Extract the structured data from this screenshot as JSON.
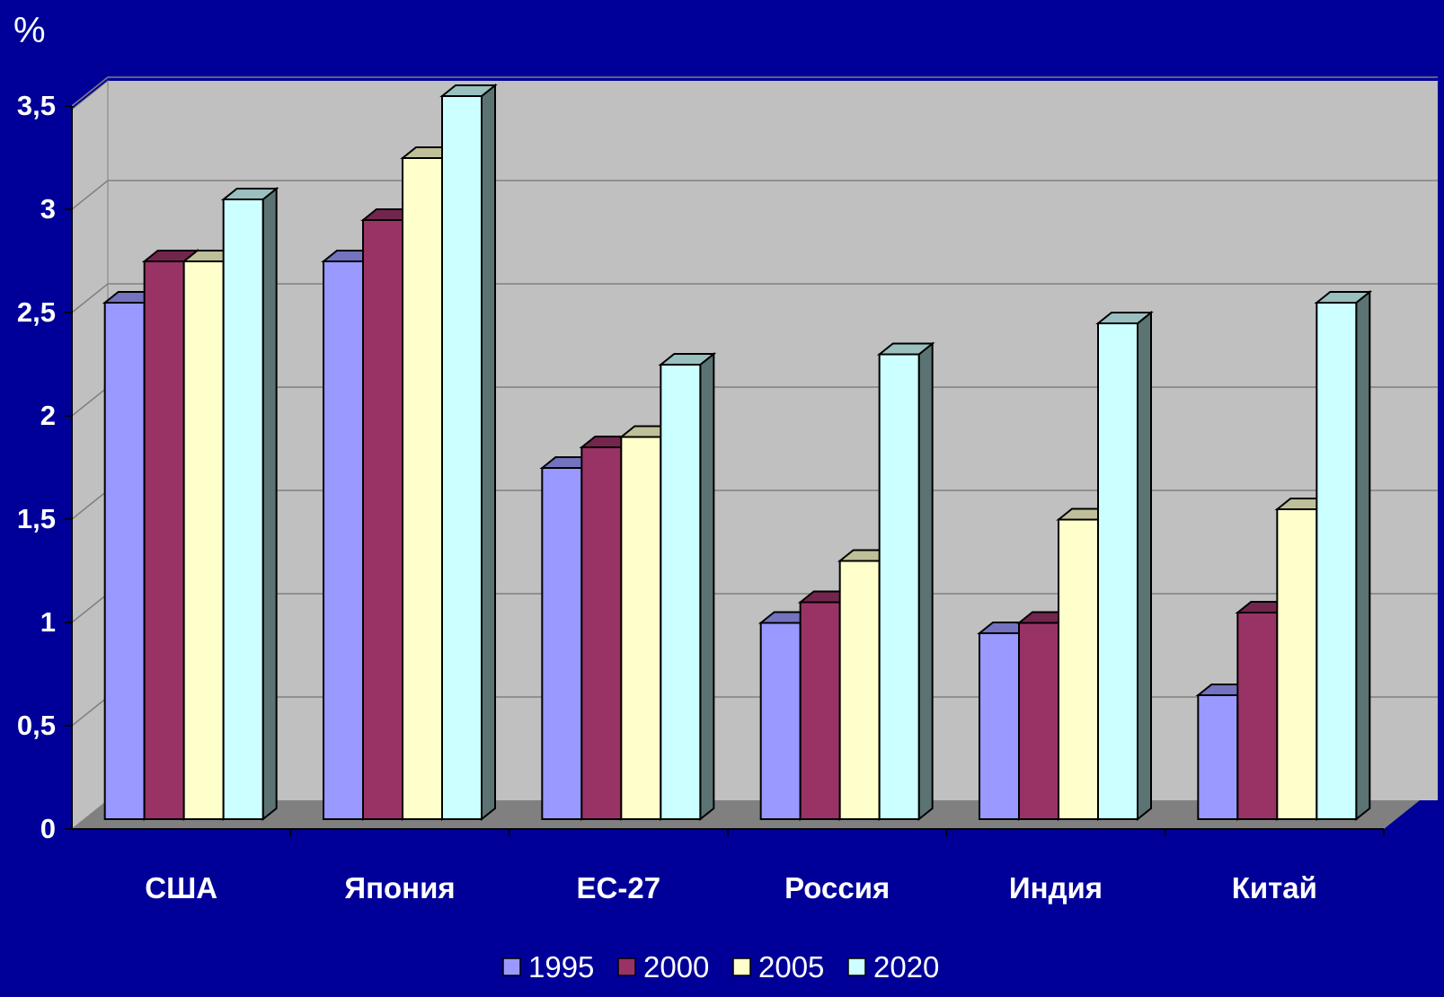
{
  "chart_data": {
    "type": "bar",
    "unit_label": "%",
    "categories": [
      "США",
      "Япония",
      "ЕС-27",
      "Россия",
      "Индия",
      "Китай"
    ],
    "series": [
      {
        "name": "1995",
        "color": "#9999FF",
        "values": [
          2.5,
          2.7,
          1.7,
          0.95,
          0.9,
          0.6
        ]
      },
      {
        "name": "2000",
        "color": "#993366",
        "values": [
          2.7,
          2.9,
          1.8,
          1.05,
          0.95,
          1.0
        ]
      },
      {
        "name": "2005",
        "color": "#FFFFCC",
        "values": [
          2.7,
          3.2,
          1.85,
          1.25,
          1.45,
          1.5
        ]
      },
      {
        "name": "2020",
        "color": "#CCFFFF",
        "values": [
          3.0,
          3.5,
          2.2,
          2.25,
          2.4,
          2.5
        ]
      }
    ],
    "ylim": [
      0,
      3.5
    ],
    "yticks": [
      "0",
      "0,5",
      "1",
      "1,5",
      "2",
      "2,5",
      "3",
      "3,5"
    ],
    "grid": true,
    "legend_position": "bottom",
    "colors": {
      "background": "#000099",
      "plot_wall": "#C0C0C0",
      "floor": "#808080",
      "text": "#FFFFFF"
    }
  }
}
